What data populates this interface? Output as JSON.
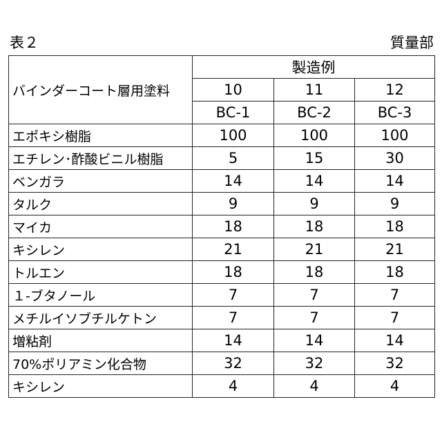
{
  "caption": "表２",
  "unit": "質量部",
  "header": {
    "material": "バインダーコート層用塗料",
    "group": "製造例",
    "examples": [
      10,
      11,
      12
    ],
    "codes": [
      "BC-1",
      "BC-2",
      "BC-3"
    ]
  },
  "rows": [
    {
      "name": "エポキシ樹脂",
      "values": [
        100,
        100,
        100
      ]
    },
    {
      "name": "エチレン･酢酸ビニル樹脂",
      "values": [
        5,
        15,
        30
      ]
    },
    {
      "name": "ベンガラ",
      "values": [
        14,
        14,
        14
      ]
    },
    {
      "name": "タルク",
      "values": [
        9,
        9,
        9
      ]
    },
    {
      "name": "マイカ",
      "values": [
        18,
        18,
        18
      ]
    },
    {
      "name": "キシレン",
      "values": [
        21,
        21,
        21
      ]
    },
    {
      "name": "トルエン",
      "values": [
        18,
        18,
        18
      ]
    },
    {
      "name": "１-ブタノール",
      "values": [
        7,
        7,
        7
      ]
    },
    {
      "name": "メチルイソブチルケトン",
      "values": [
        7,
        7,
        7
      ]
    },
    {
      "name": "増粘剤",
      "values": [
        14,
        14,
        14
      ]
    },
    {
      "name": "70%ポリアミン化合物",
      "values": [
        32,
        32,
        32
      ]
    },
    {
      "name": "キシレン",
      "values": [
        4,
        4,
        4
      ]
    }
  ]
}
